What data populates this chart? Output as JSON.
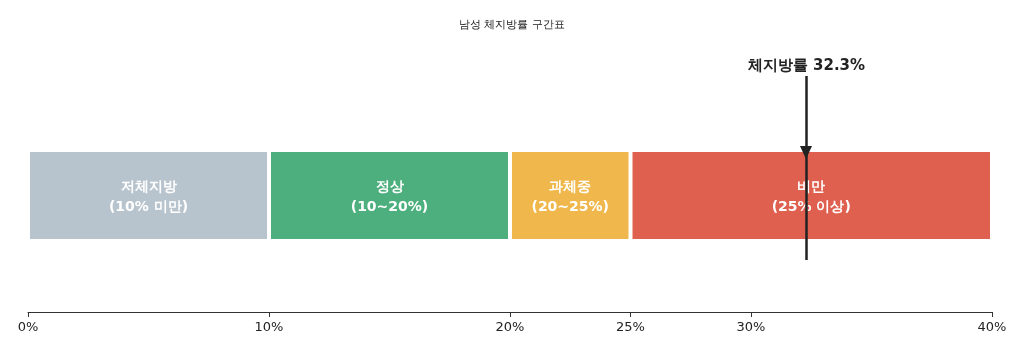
{
  "chart_data": {
    "type": "bar",
    "title": "남성 체지방률 구간표",
    "orientation": "horizontal",
    "stacked": true,
    "categories": [
      null
    ],
    "series": [
      {
        "name": "저체지방\n(10% 미만)",
        "color": "#b8c4cd",
        "values": [
          10
        ]
      },
      {
        "name": "정상\n(10~20%)",
        "color": "#4caf7d",
        "values": [
          10
        ]
      },
      {
        "name": "과체중\n(20~25%)",
        "color": "#f0b84c",
        "values": [
          5
        ]
      },
      {
        "name": "비만\n(25% 이상)",
        "color": "#e06050",
        "values": [
          15
        ]
      }
    ],
    "xlim": [
      0,
      40
    ],
    "xticks": [
      {
        "value": 0,
        "label": "0%"
      },
      {
        "value": 10,
        "label": "10%"
      },
      {
        "value": 20,
        "label": "20%"
      },
      {
        "value": 25,
        "label": "25%"
      },
      {
        "value": 30,
        "label": "30%"
      },
      {
        "value": 40,
        "label": "40%"
      }
    ],
    "ref_lines": [
      {
        "axis": "x",
        "value": 32.3,
        "label": "체지방률 32.3%",
        "color": "#222222"
      }
    ],
    "grid": false,
    "legend": false
  }
}
